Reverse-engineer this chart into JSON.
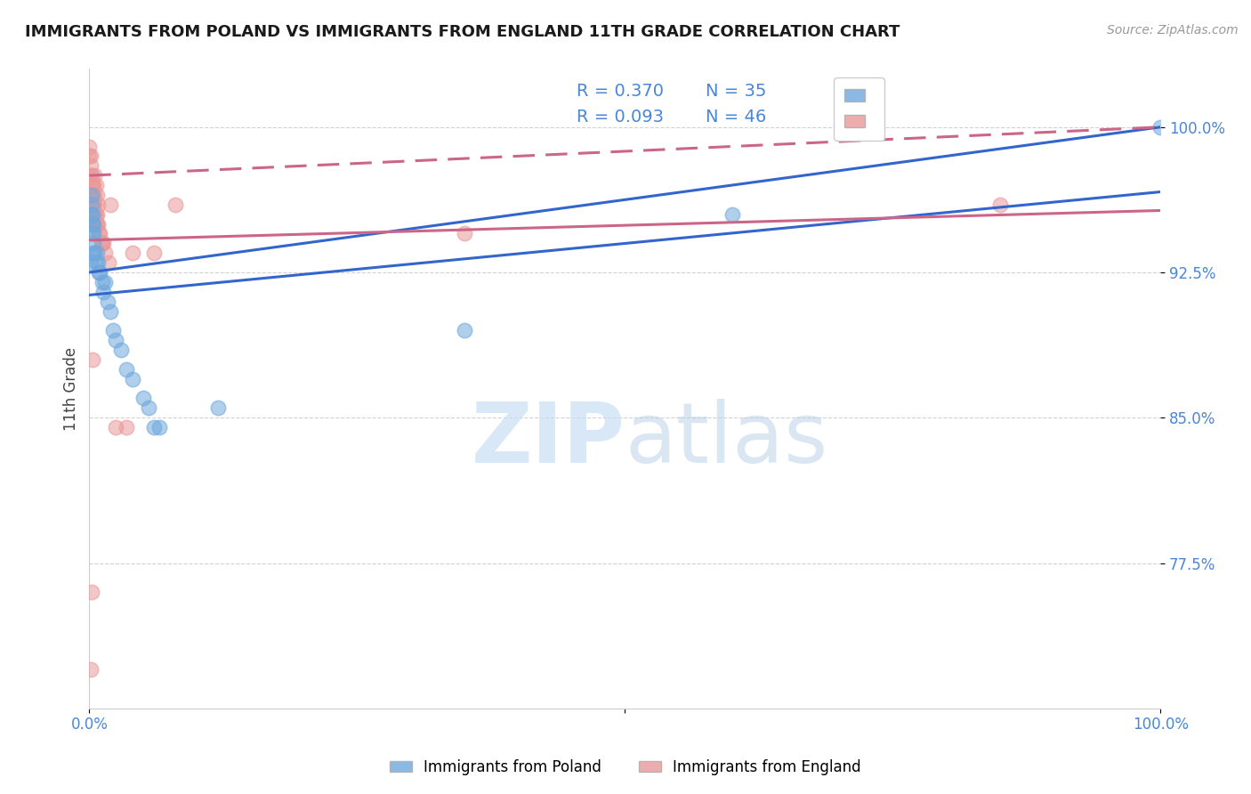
{
  "title": "IMMIGRANTS FROM POLAND VS IMMIGRANTS FROM ENGLAND 11TH GRADE CORRELATION CHART",
  "source": "Source: ZipAtlas.com",
  "ylabel": "11th Grade",
  "xlim": [
    0.0,
    1.0
  ],
  "ylim": [
    0.7,
    1.03
  ],
  "yticks": [
    0.775,
    0.85,
    0.925,
    1.0
  ],
  "ytick_labels": [
    "77.5%",
    "85.0%",
    "92.5%",
    "100.0%"
  ],
  "xtick_positions": [
    0.0,
    0.5,
    1.0
  ],
  "xtick_labels": [
    "0.0%",
    "",
    "100.0%"
  ],
  "legend_r_poland": "R = 0.370",
  "legend_n_poland": "N = 35",
  "legend_r_england": "R = 0.093",
  "legend_n_england": "N = 46",
  "poland_color": "#6fa8dc",
  "england_color": "#ea9999",
  "poland_line_color": "#3366cc",
  "england_line_color": "#cc6688",
  "background_color": "#ffffff",
  "grid_color": "#cccccc",
  "watermark_zip": "ZIP",
  "watermark_atlas": "atlas",
  "poland_x": [
    0.002,
    0.002,
    0.002,
    0.003,
    0.003,
    0.003,
    0.004,
    0.004,
    0.004,
    0.004,
    0.005,
    0.006,
    0.007,
    0.008,
    0.009,
    0.01,
    0.012,
    0.013,
    0.015,
    0.017,
    0.02,
    0.022,
    0.025,
    0.03,
    0.035,
    0.04,
    0.05,
    0.055,
    0.06,
    0.065,
    0.12,
    0.35,
    0.6,
    1.0,
    0.001
  ],
  "poland_y": [
    0.965,
    0.96,
    0.955,
    0.955,
    0.95,
    0.945,
    0.95,
    0.945,
    0.94,
    0.935,
    0.935,
    0.93,
    0.935,
    0.93,
    0.925,
    0.925,
    0.92,
    0.915,
    0.92,
    0.91,
    0.905,
    0.895,
    0.89,
    0.885,
    0.875,
    0.87,
    0.86,
    0.855,
    0.845,
    0.845,
    0.855,
    0.895,
    0.955,
    1.0,
    0.93
  ],
  "england_x": [
    0.0,
    0.0,
    0.001,
    0.001,
    0.001,
    0.002,
    0.002,
    0.002,
    0.003,
    0.003,
    0.003,
    0.003,
    0.003,
    0.004,
    0.004,
    0.005,
    0.005,
    0.005,
    0.006,
    0.006,
    0.007,
    0.007,
    0.008,
    0.009,
    0.01,
    0.011,
    0.012,
    0.013,
    0.015,
    0.018,
    0.02,
    0.025,
    0.035,
    0.04,
    0.06,
    0.08,
    0.35,
    0.85,
    0.001,
    0.002,
    0.003,
    0.004,
    0.005,
    0.006,
    0.007,
    0.008
  ],
  "england_y": [
    0.99,
    0.985,
    0.985,
    0.98,
    0.975,
    0.975,
    0.97,
    0.965,
    0.97,
    0.965,
    0.96,
    0.955,
    0.95,
    0.96,
    0.955,
    0.965,
    0.96,
    0.955,
    0.955,
    0.95,
    0.955,
    0.95,
    0.95,
    0.945,
    0.945,
    0.94,
    0.94,
    0.94,
    0.935,
    0.93,
    0.96,
    0.845,
    0.845,
    0.935,
    0.935,
    0.96,
    0.945,
    0.96,
    0.72,
    0.76,
    0.88,
    0.97,
    0.975,
    0.97,
    0.965,
    0.96
  ],
  "poland_line_x0": 0.0,
  "poland_line_y0": 0.925,
  "poland_line_x1": 1.0,
  "poland_line_y1": 1.0,
  "england_line_x0": 0.0,
  "england_line_y0": 0.975,
  "england_line_x1": 1.0,
  "england_line_y1": 1.0
}
